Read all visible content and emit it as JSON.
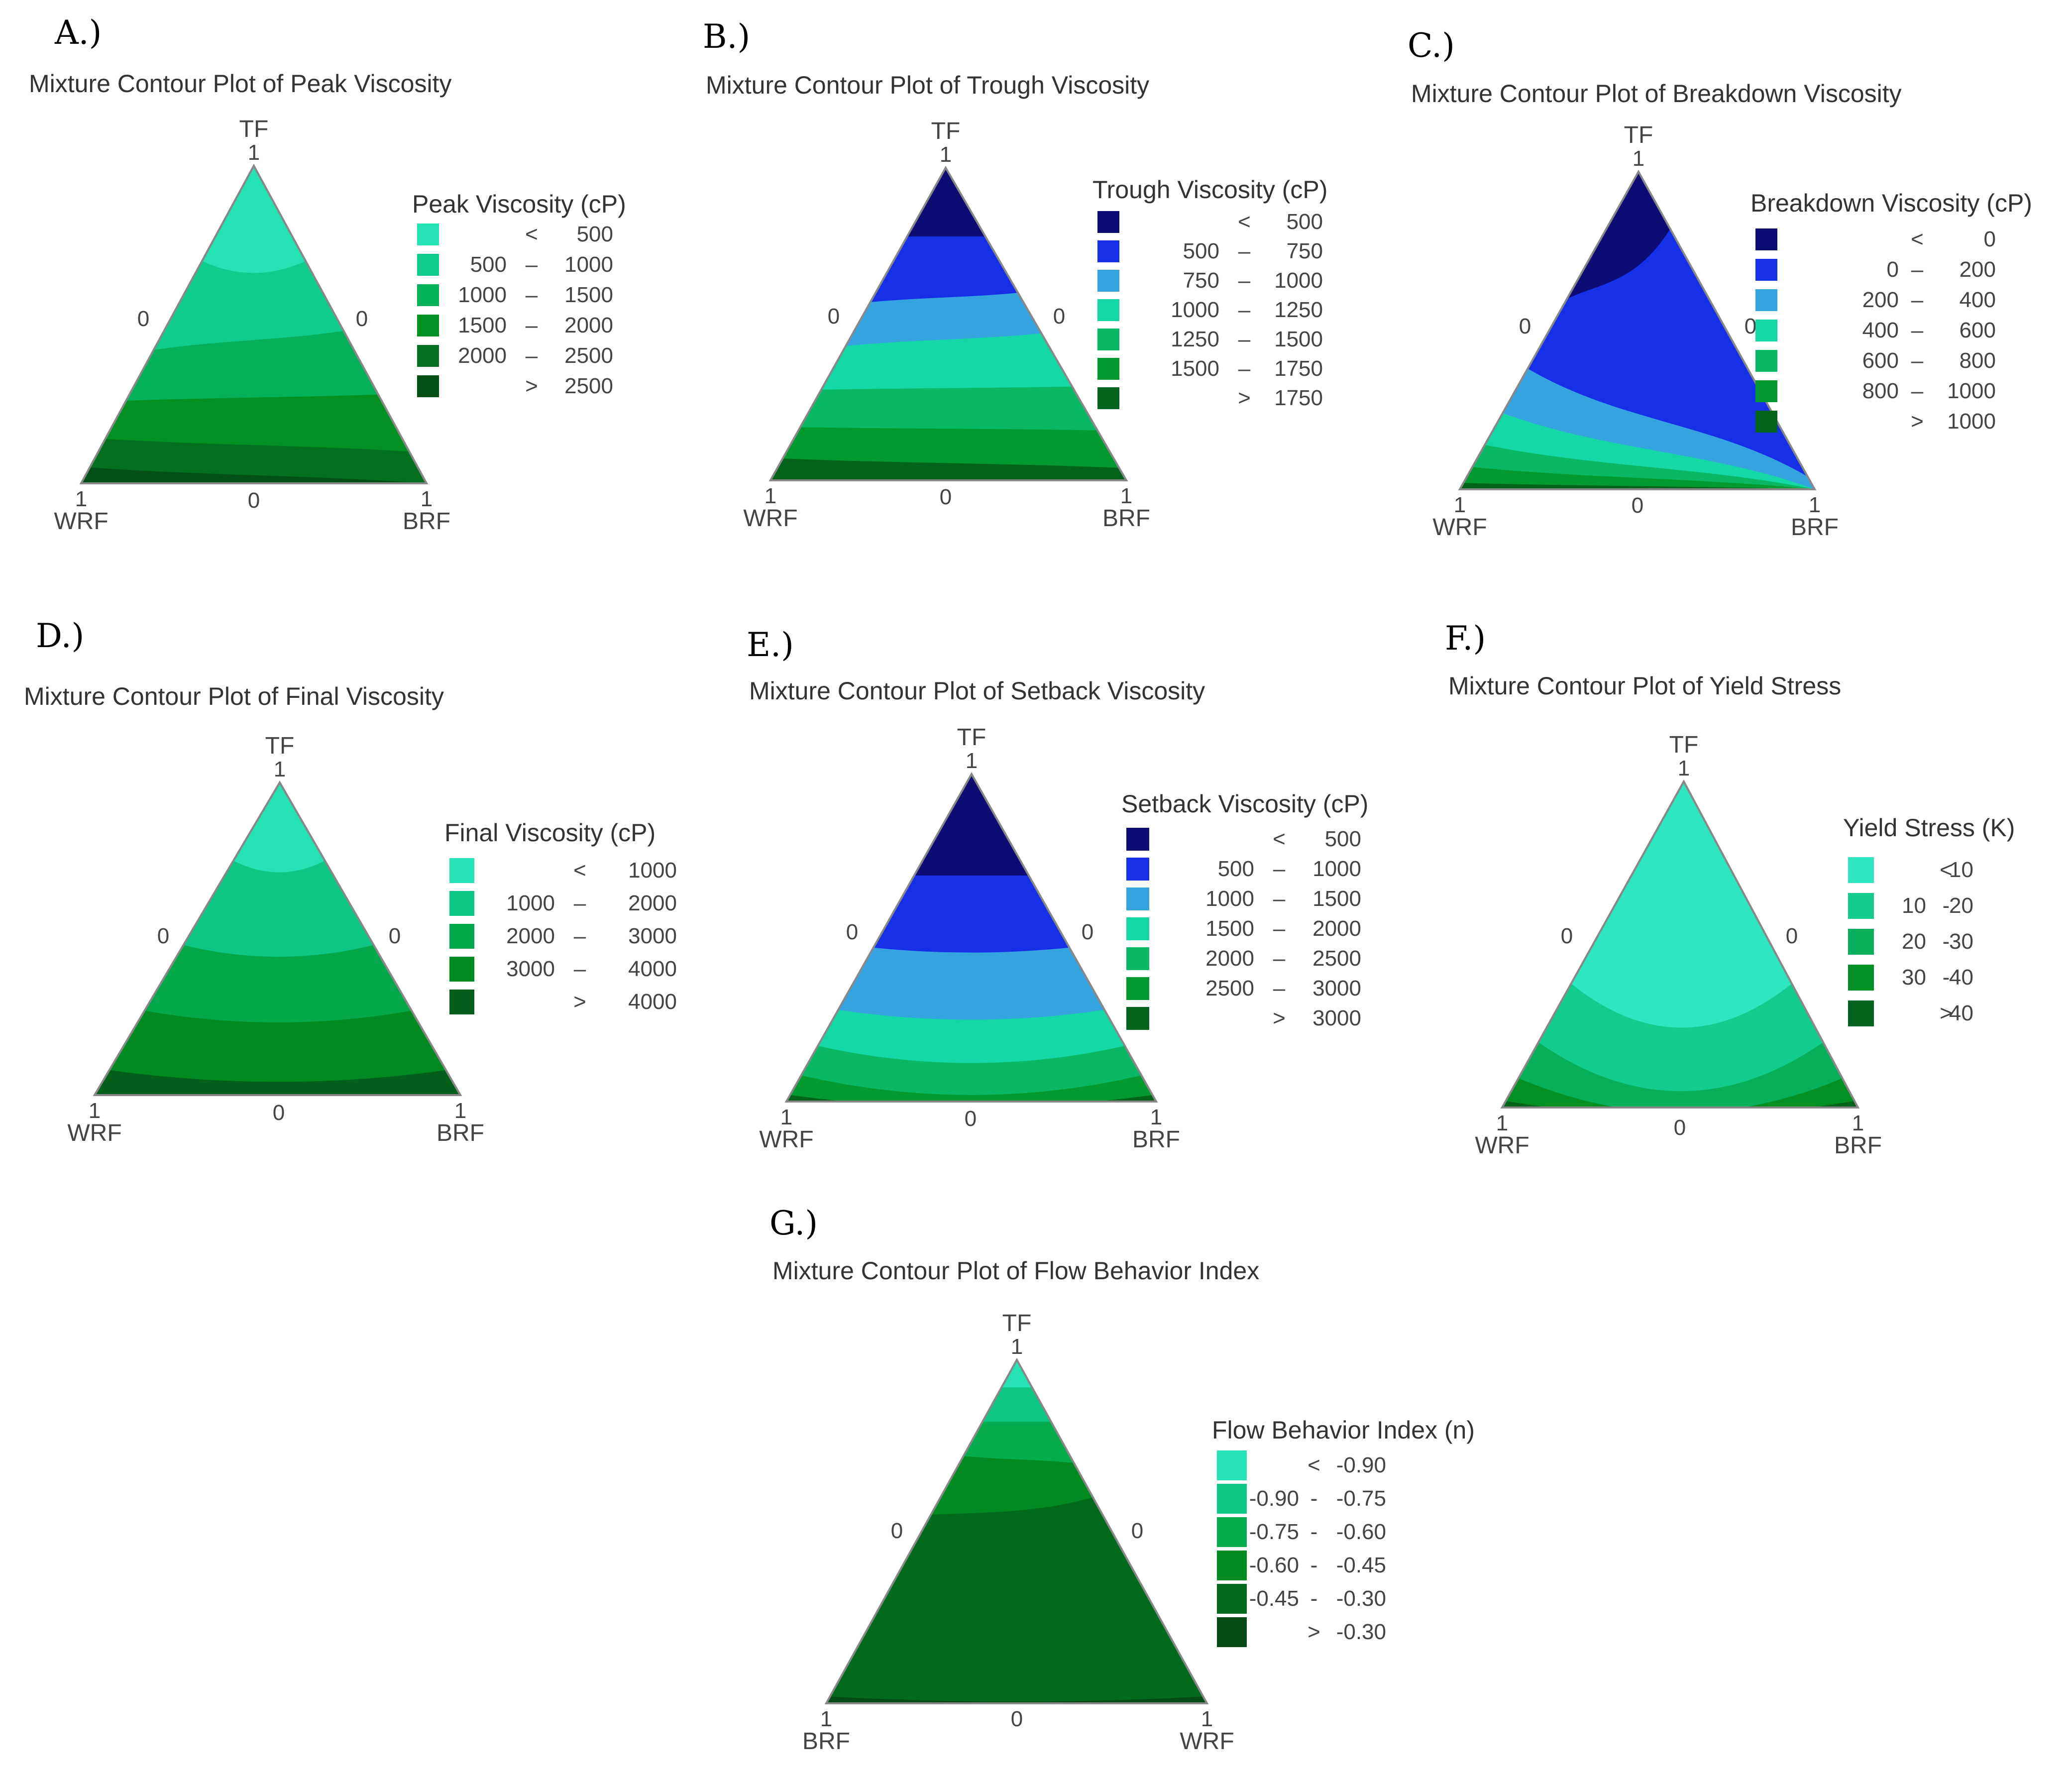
{
  "figure": {
    "panels": [
      {
        "letter": "A.)",
        "title": "Mixture Contour Plot of Peak Viscosity",
        "legend_title": "Peak Viscosity (cP)"
      },
      {
        "letter": "B.)",
        "title": "Mixture Contour Plot of Trough Viscosity",
        "legend_title": "Trough Viscosity (cP)"
      },
      {
        "letter": "C.)",
        "title": "Mixture Contour Plot of Breakdown Viscosity",
        "legend_title": "Breakdown Viscosity (cP)"
      },
      {
        "letter": "D.)",
        "title": "Mixture Contour Plot of Final Viscosity",
        "legend_title": "Final Viscosity (cP)"
      },
      {
        "letter": "E.)",
        "title": "Mixture Contour Plot of Setback Viscosity",
        "legend_title": "Setback Viscosity (cP)"
      },
      {
        "letter": "F.)",
        "title": "Mixture Contour Plot of Yield Stress",
        "legend_title": "Yield Stress (K)"
      },
      {
        "letter": "G.)",
        "title": "Mixture Contour Plot of Flow Behavior Index",
        "legend_title": "Flow Behavior Index (n)"
      }
    ]
  },
  "chart_data": [
    {
      "type": "ternary-contour",
      "title": "Mixture Contour Plot of Peak Viscosity",
      "vertices": {
        "top": "TF",
        "left": "WRF",
        "right": "BRF"
      },
      "vertex_ticks": {
        "top": "1",
        "left": "1",
        "right": "1",
        "left_edge": "0",
        "right_edge": "0",
        "bottom_edge": "0"
      },
      "legend": {
        "title": "Peak Viscosity (cP)",
        "bins": [
          {
            "lo": "",
            "op": "<",
            "hi": "500",
            "color": "#25e3b4"
          },
          {
            "lo": "500",
            "op": "–",
            "hi": "1000",
            "color": "#10cc8c"
          },
          {
            "lo": "1000",
            "op": "–",
            "hi": "1500",
            "color": "#05b05a"
          },
          {
            "lo": "1500",
            "op": "–",
            "hi": "2000",
            "color": "#029022"
          },
          {
            "lo": "2000",
            "op": "–",
            "hi": "2500",
            "color": "#027020"
          },
          {
            "lo": "",
            "op": ">",
            "hi": "2500",
            "color": "#024f18"
          }
        ]
      },
      "contour_values": [
        500,
        1000,
        1500,
        2000,
        2500
      ]
    },
    {
      "type": "ternary-contour",
      "title": "Mixture Contour Plot of Trough Viscosity",
      "vertices": {
        "top": "TF",
        "left": "WRF",
        "right": "BRF"
      },
      "vertex_ticks": {
        "top": "1",
        "left": "1",
        "right": "1",
        "left_edge": "0",
        "right_edge": "0",
        "bottom_edge": "0"
      },
      "legend": {
        "title": "Trough Viscosity (cP)",
        "bins": [
          {
            "lo": "",
            "op": "<",
            "hi": "500",
            "color": "#0c0c74"
          },
          {
            "lo": "500",
            "op": "–",
            "hi": "750",
            "color": "#1530e6"
          },
          {
            "lo": "750",
            "op": "–",
            "hi": "1000",
            "color": "#35a3e0"
          },
          {
            "lo": "1000",
            "op": "–",
            "hi": "1250",
            "color": "#13d7a4"
          },
          {
            "lo": "1250",
            "op": "–",
            "hi": "1500",
            "color": "#08b864"
          },
          {
            "lo": "1500",
            "op": "–",
            "hi": "1750",
            "color": "#029a30"
          },
          {
            "lo": "",
            "op": ">",
            "hi": "1750",
            "color": "#02631c"
          }
        ]
      },
      "contour_values": [
        500,
        750,
        1000,
        1250,
        1500,
        1750
      ]
    },
    {
      "type": "ternary-contour",
      "title": "Mixture Contour Plot of Breakdown Viscosity",
      "vertices": {
        "top": "TF",
        "left": "WRF",
        "right": "BRF"
      },
      "vertex_ticks": {
        "top": "1",
        "left": "1",
        "right": "1",
        "left_edge": "0",
        "right_edge": "0",
        "bottom_edge": "0"
      },
      "legend": {
        "title": "Breakdown Viscosity (cP)",
        "bins": [
          {
            "lo": "",
            "op": "<",
            "hi": "0",
            "color": "#0c0c74"
          },
          {
            "lo": "0",
            "op": "–",
            "hi": "200",
            "color": "#1530e6"
          },
          {
            "lo": "200",
            "op": "–",
            "hi": "400",
            "color": "#35a3e0"
          },
          {
            "lo": "400",
            "op": "–",
            "hi": "600",
            "color": "#13d7a4"
          },
          {
            "lo": "600",
            "op": "–",
            "hi": "800",
            "color": "#08b864"
          },
          {
            "lo": "800",
            "op": "–",
            "hi": "1000",
            "color": "#029a30"
          },
          {
            "lo": "",
            "op": ">",
            "hi": "1000",
            "color": "#02631c"
          }
        ]
      },
      "contour_values": [
        0,
        200,
        400,
        600,
        800,
        1000
      ]
    },
    {
      "type": "ternary-contour",
      "title": "Mixture Contour Plot of Final Viscosity",
      "vertices": {
        "top": "TF",
        "left": "WRF",
        "right": "BRF"
      },
      "vertex_ticks": {
        "top": "1",
        "left": "1",
        "right": "1",
        "left_edge": "0",
        "right_edge": "0",
        "bottom_edge": "0"
      },
      "legend": {
        "title": "Final Viscosity (cP)",
        "bins": [
          {
            "lo": "",
            "op": "<",
            "hi": "1000",
            "color": "#25e3b4"
          },
          {
            "lo": "1000",
            "op": "–",
            "hi": "2000",
            "color": "#0dc684"
          },
          {
            "lo": "2000",
            "op": "–",
            "hi": "3000",
            "color": "#04a74a"
          },
          {
            "lo": "3000",
            "op": "–",
            "hi": "4000",
            "color": "#028a22"
          },
          {
            "lo": "",
            "op": ">",
            "hi": "4000",
            "color": "#02601c"
          }
        ]
      },
      "contour_values": [
        1000,
        2000,
        3000,
        4000
      ]
    },
    {
      "type": "ternary-contour",
      "title": "Mixture Contour Plot of Setback Viscosity",
      "vertices": {
        "top": "TF",
        "left": "WRF",
        "right": "BRF"
      },
      "vertex_ticks": {
        "top": "1",
        "left": "1",
        "right": "1",
        "left_edge": "0",
        "right_edge": "0",
        "bottom_edge": "0"
      },
      "legend": {
        "title": "Setback Viscosity (cP)",
        "bins": [
          {
            "lo": "",
            "op": "<",
            "hi": "500",
            "color": "#0c0c74"
          },
          {
            "lo": "500",
            "op": "–",
            "hi": "1000",
            "color": "#1530e6"
          },
          {
            "lo": "1000",
            "op": "–",
            "hi": "1500",
            "color": "#35a3e0"
          },
          {
            "lo": "1500",
            "op": "–",
            "hi": "2000",
            "color": "#13d7a4"
          },
          {
            "lo": "2000",
            "op": "–",
            "hi": "2500",
            "color": "#08b864"
          },
          {
            "lo": "2500",
            "op": "–",
            "hi": "3000",
            "color": "#029a30"
          },
          {
            "lo": "",
            "op": ">",
            "hi": "3000",
            "color": "#02631c"
          }
        ]
      },
      "contour_values": [
        500,
        1000,
        1500,
        2000,
        2500,
        3000
      ]
    },
    {
      "type": "ternary-contour",
      "title": "Mixture Contour Plot of Yield Stress",
      "vertices": {
        "top": "TF",
        "left": "WRF",
        "right": "BRF"
      },
      "vertex_ticks": {
        "top": "1",
        "left": "1",
        "right": "1",
        "left_edge": "0",
        "right_edge": "0",
        "bottom_edge": "0"
      },
      "legend": {
        "title": "Yield Stress (K)",
        "bins": [
          {
            "lo": "",
            "op": "<",
            "hi": "10",
            "color": "#2ee6c0"
          },
          {
            "lo": "10",
            "op": "-",
            "hi": "20",
            "color": "#12cc8e"
          },
          {
            "lo": "20",
            "op": "-",
            "hi": "30",
            "color": "#06b05a"
          },
          {
            "lo": "30",
            "op": "-",
            "hi": "40",
            "color": "#029024"
          },
          {
            "lo": "",
            "op": ">",
            "hi": "40",
            "color": "#02631c"
          }
        ]
      },
      "contour_values": [
        10,
        20,
        30,
        40
      ]
    },
    {
      "type": "ternary-contour",
      "title": "Mixture Contour Plot of Flow Behavior Index",
      "vertices": {
        "top": "TF",
        "left": "BRF",
        "right": "WRF"
      },
      "vertex_ticks": {
        "top": "1",
        "left": "1",
        "right": "1",
        "left_edge": "0",
        "right_edge": "0",
        "bottom_edge": "0"
      },
      "legend": {
        "title": "Flow Behavior Index (n)",
        "bins": [
          {
            "lo": "",
            "op": "<",
            "hi": "-0.90",
            "color": "#25e3b4"
          },
          {
            "lo": "-0.90",
            "op": "-",
            "hi": "-0.75",
            "color": "#0dc684"
          },
          {
            "lo": "-0.75",
            "op": "-",
            "hi": "-0.60",
            "color": "#05ac4e"
          },
          {
            "lo": "-0.60",
            "op": "-",
            "hi": "-0.45",
            "color": "#028a22"
          },
          {
            "lo": "-0.45",
            "op": "-",
            "hi": "-0.30",
            "color": "#026a1e"
          },
          {
            "lo": "",
            "op": ">",
            "hi": "-0.30",
            "color": "#024a16"
          }
        ]
      },
      "contour_values": [
        -0.9,
        -0.75,
        -0.6,
        -0.45,
        -0.3
      ]
    }
  ]
}
